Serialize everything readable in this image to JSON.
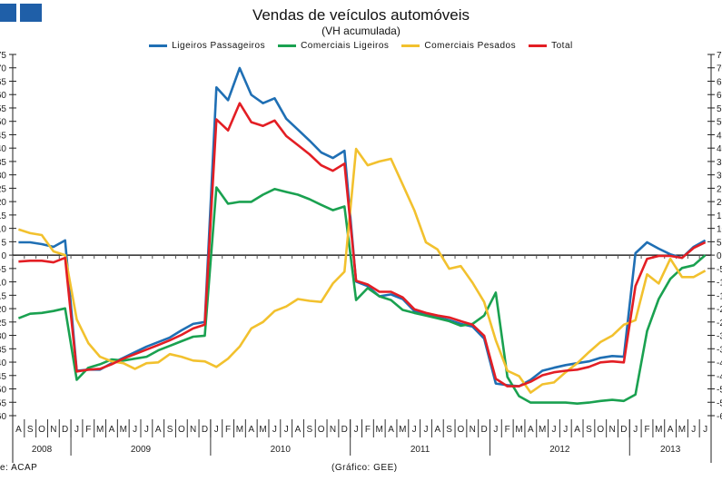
{
  "chart_data": {
    "type": "line",
    "title": "Vendas de veículos automóveis",
    "subtitle": "(VH acumulada)",
    "xlabel": "",
    "ylabel": "",
    "ylim": [
      -60,
      75
    ],
    "ytick_step": 5,
    "grid": false,
    "legend_position": "top-center",
    "months": [
      "A",
      "S",
      "O",
      "N",
      "D",
      "J",
      "F",
      "M",
      "A",
      "M",
      "J",
      "J",
      "A",
      "S",
      "O",
      "N",
      "D",
      "J",
      "F",
      "M",
      "A",
      "M",
      "J",
      "J",
      "A",
      "S",
      "O",
      "N",
      "D",
      "J",
      "F",
      "M",
      "A",
      "M",
      "J",
      "J",
      "A",
      "S",
      "O",
      "N",
      "D",
      "J",
      "F",
      "M",
      "A",
      "M",
      "J",
      "J",
      "A",
      "S",
      "O",
      "N",
      "D",
      "J",
      "F",
      "M",
      "A",
      "M",
      "J",
      "J"
    ],
    "years": [
      {
        "label": "2008",
        "months": 5
      },
      {
        "label": "2009",
        "months": 12
      },
      {
        "label": "2010",
        "months": 12
      },
      {
        "label": "2011",
        "months": 12
      },
      {
        "label": "2012",
        "months": 12
      },
      {
        "label": "2013",
        "months": 7
      }
    ],
    "series": [
      {
        "name": "Ligeiros Passageiros",
        "color": "#1f6fb4",
        "values": [
          4.8,
          4.8,
          4.1,
          3.1,
          5.5,
          -43.2,
          -42.8,
          -42.8,
          -40.4,
          -38.4,
          -36.3,
          -34.2,
          -32.5,
          -30.8,
          -28.1,
          -25.7,
          -25.0,
          62.7,
          57.9,
          69.9,
          59.9,
          56.8,
          58.6,
          51.0,
          46.9,
          42.8,
          38.4,
          36.3,
          39.0,
          -9.9,
          -11.6,
          -15.4,
          -14.7,
          -16.4,
          -20.9,
          -22.3,
          -23.3,
          -24.3,
          -25.7,
          -26.7,
          -31.2,
          -48.0,
          -48.6,
          -49.0,
          -46.6,
          -43.2,
          -42.1,
          -41.1,
          -40.4,
          -39.7,
          -38.4,
          -37.7,
          -38.0,
          0.7,
          4.8,
          2.4,
          0.3,
          -1.0,
          3.1,
          5.5
        ]
      },
      {
        "name": "Comerciais Ligeiros",
        "color": "#1aa150",
        "values": [
          -23.6,
          -21.9,
          -21.6,
          -20.9,
          -19.9,
          -46.6,
          -42.1,
          -40.8,
          -39.0,
          -39.4,
          -38.7,
          -38.0,
          -35.6,
          -33.9,
          -32.2,
          -30.5,
          -30.1,
          25.3,
          19.2,
          19.9,
          19.9,
          22.6,
          24.7,
          23.6,
          22.6,
          20.9,
          18.8,
          16.8,
          18.2,
          -16.8,
          -12.3,
          -15.4,
          -16.8,
          -20.5,
          -21.6,
          -22.6,
          -23.6,
          -24.7,
          -26.4,
          -25.7,
          -22.6,
          -14.0,
          -45.5,
          -52.7,
          -55.1,
          -55.1,
          -55.1,
          -55.1,
          -55.5,
          -55.1,
          -54.5,
          -54.1,
          -54.5,
          -52.1,
          -28.4,
          -16.4,
          -8.9,
          -4.8,
          -3.8,
          0.0
        ]
      },
      {
        "name": "Comerciais Pesados",
        "color": "#f2c12e",
        "values": [
          9.6,
          8.2,
          7.5,
          1.4,
          0.0,
          -24.0,
          -32.9,
          -38.0,
          -39.7,
          -40.4,
          -42.5,
          -40.4,
          -40.1,
          -37.0,
          -38.0,
          -39.4,
          -39.7,
          -41.8,
          -38.7,
          -34.2,
          -27.4,
          -25.0,
          -20.9,
          -19.2,
          -16.4,
          -17.1,
          -17.5,
          -10.6,
          -6.2,
          39.7,
          33.6,
          35.0,
          36.0,
          26.4,
          16.8,
          4.8,
          2.1,
          -5.1,
          -4.1,
          -10.3,
          -17.5,
          -31.8,
          -43.2,
          -45.2,
          -51.4,
          -48.3,
          -47.6,
          -43.8,
          -40.4,
          -36.3,
          -32.5,
          -30.1,
          -26.0,
          -24.3,
          -7.2,
          -10.6,
          -1.4,
          -8.2,
          -8.2,
          -5.8
        ]
      },
      {
        "name": "Total",
        "color": "#e31e24",
        "values": [
          -2.4,
          -2.1,
          -2.1,
          -2.7,
          -1.0,
          -43.5,
          -42.8,
          -42.5,
          -40.8,
          -38.7,
          -37.0,
          -35.3,
          -33.6,
          -31.8,
          -29.8,
          -27.4,
          -26.0,
          50.7,
          46.6,
          56.8,
          49.7,
          48.3,
          50.3,
          44.5,
          41.1,
          37.7,
          33.6,
          31.5,
          34.2,
          -9.6,
          -11.0,
          -13.7,
          -13.7,
          -15.8,
          -20.2,
          -21.6,
          -22.6,
          -23.3,
          -24.7,
          -26.0,
          -30.1,
          -46.2,
          -49.0,
          -49.0,
          -47.3,
          -44.9,
          -43.8,
          -43.2,
          -42.8,
          -41.8,
          -40.1,
          -39.7,
          -40.1,
          -11.6,
          -1.4,
          -0.3,
          -0.3,
          -1.0,
          2.7,
          4.8
        ]
      }
    ]
  },
  "footer": {
    "source": "e: ACAP",
    "credit": "(Gráfico: GEE)"
  },
  "colors": {
    "header_squares": "#1f5fa8"
  }
}
